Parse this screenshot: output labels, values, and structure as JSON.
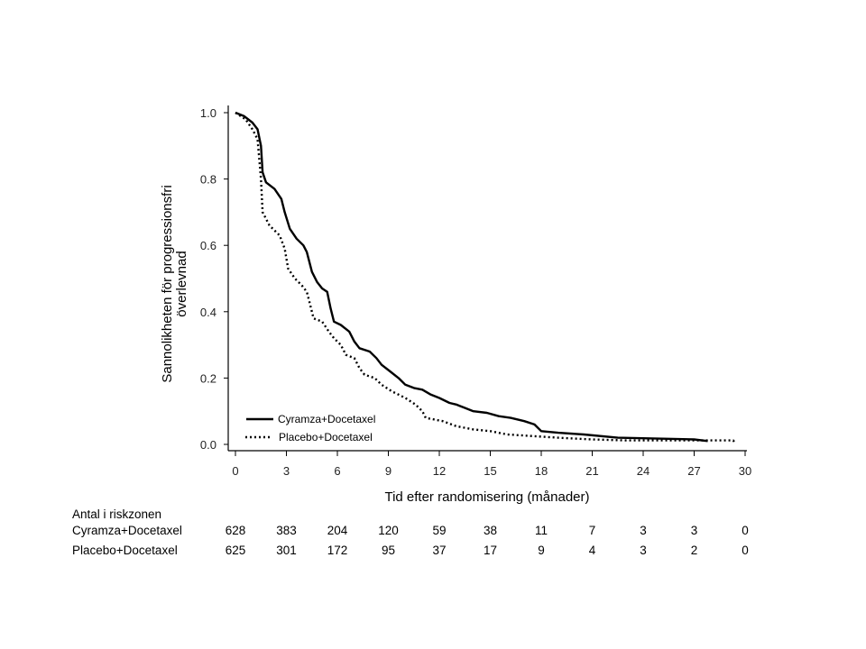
{
  "chart_data": {
    "type": "line",
    "title": "",
    "xlabel": "Tid efter randomisering (månader)",
    "ylabel_lines": [
      "Sannolikheten för progressionsfri",
      "överlevnad"
    ],
    "xlim": [
      0,
      30
    ],
    "ylim": [
      0,
      1
    ],
    "x_ticks": [
      "0",
      "3",
      "6",
      "9",
      "12",
      "15",
      "18",
      "21",
      "24",
      "27",
      "30"
    ],
    "y_ticks": [
      "0.0",
      "0.2",
      "0.4",
      "0.6",
      "0.8",
      "1.0"
    ],
    "grid": false,
    "legend_position": "bottom-left",
    "series": [
      {
        "name": "Cyramza+Docetaxel",
        "style": "solid",
        "color": "#000000",
        "x": [
          0,
          0.5,
          1.0,
          1.3,
          1.5,
          1.6,
          1.8,
          2.3,
          2.7,
          2.9,
          3.2,
          3.6,
          4.0,
          4.2,
          4.5,
          4.8,
          5.1,
          5.4,
          5.6,
          5.8,
          6.2,
          6.7,
          7.0,
          7.3,
          7.9,
          8.3,
          8.6,
          9.1,
          9.6,
          10.0,
          10.5,
          11.0,
          11.5,
          12.0,
          12.6,
          13.0,
          13.5,
          14.0,
          14.8,
          15.5,
          16.2,
          17.0,
          17.6,
          18.0,
          19.0,
          20.5,
          22.5,
          27.0,
          27.8
        ],
        "y": [
          1.0,
          0.99,
          0.97,
          0.95,
          0.9,
          0.82,
          0.79,
          0.77,
          0.74,
          0.7,
          0.65,
          0.62,
          0.6,
          0.58,
          0.52,
          0.49,
          0.47,
          0.46,
          0.41,
          0.37,
          0.36,
          0.34,
          0.31,
          0.29,
          0.28,
          0.26,
          0.24,
          0.22,
          0.2,
          0.18,
          0.17,
          0.165,
          0.15,
          0.14,
          0.125,
          0.12,
          0.11,
          0.1,
          0.095,
          0.085,
          0.08,
          0.07,
          0.06,
          0.04,
          0.035,
          0.03,
          0.02,
          0.015,
          0.01
        ]
      },
      {
        "name": "Placebo+Docetaxel",
        "style": "dotted",
        "color": "#000000",
        "x": [
          0,
          0.6,
          1.0,
          1.3,
          1.5,
          1.6,
          2.0,
          2.6,
          2.9,
          3.1,
          3.5,
          3.9,
          4.2,
          4.4,
          4.6,
          5.1,
          5.5,
          5.8,
          6.2,
          6.5,
          7.0,
          7.3,
          7.6,
          8.2,
          8.6,
          9.2,
          10.0,
          10.6,
          11.0,
          11.2,
          12.2,
          13.0,
          14.0,
          15.0,
          16.0,
          17.5,
          19.0,
          21.0,
          23.0,
          29.3,
          29.4
        ],
        "y": [
          1.0,
          0.98,
          0.95,
          0.92,
          0.8,
          0.7,
          0.66,
          0.63,
          0.59,
          0.53,
          0.5,
          0.48,
          0.46,
          0.42,
          0.38,
          0.37,
          0.34,
          0.32,
          0.3,
          0.27,
          0.26,
          0.23,
          0.21,
          0.2,
          0.18,
          0.16,
          0.14,
          0.12,
          0.1,
          0.08,
          0.07,
          0.055,
          0.045,
          0.04,
          0.03,
          0.025,
          0.02,
          0.015,
          0.012,
          0.012,
          0.005
        ]
      }
    ]
  },
  "risk_table": {
    "title": "Antal i riskzonen",
    "time_points": [
      0,
      3,
      6,
      9,
      12,
      15,
      18,
      21,
      24,
      27,
      30
    ],
    "rows": [
      {
        "label": "Cyramza+Docetaxel",
        "values": [
          "628",
          "383",
          "204",
          "120",
          "59",
          "38",
          "11",
          "7",
          "3",
          "3",
          "0"
        ]
      },
      {
        "label": "Placebo+Docetaxel",
        "values": [
          "625",
          "301",
          "172",
          "95",
          "37",
          "17",
          "9",
          "4",
          "3",
          "2",
          "0"
        ]
      }
    ]
  }
}
